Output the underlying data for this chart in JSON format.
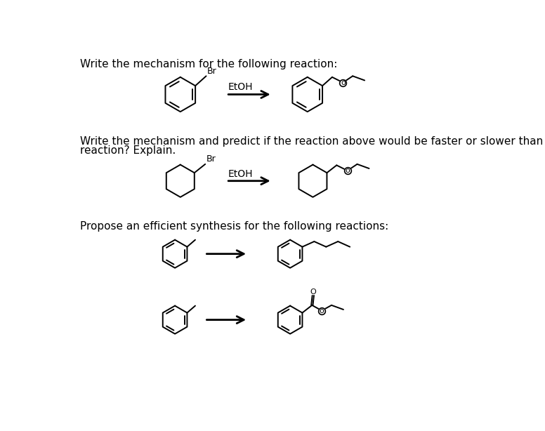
{
  "background_color": "#ffffff",
  "text_color": "#000000",
  "line_color": "#000000",
  "title1": "Write the mechanism for the following reaction:",
  "title2_line1": "Write the mechanism and predict if the reaction above would be faster or slower than the following",
  "title2_line2": "reaction? Explain.",
  "title3": "Propose an efficient synthesis for the following reactions:",
  "etoh_label": "EtOH",
  "br_label": "Br",
  "figsize": [
    7.76,
    6.14
  ],
  "dpi": 100
}
